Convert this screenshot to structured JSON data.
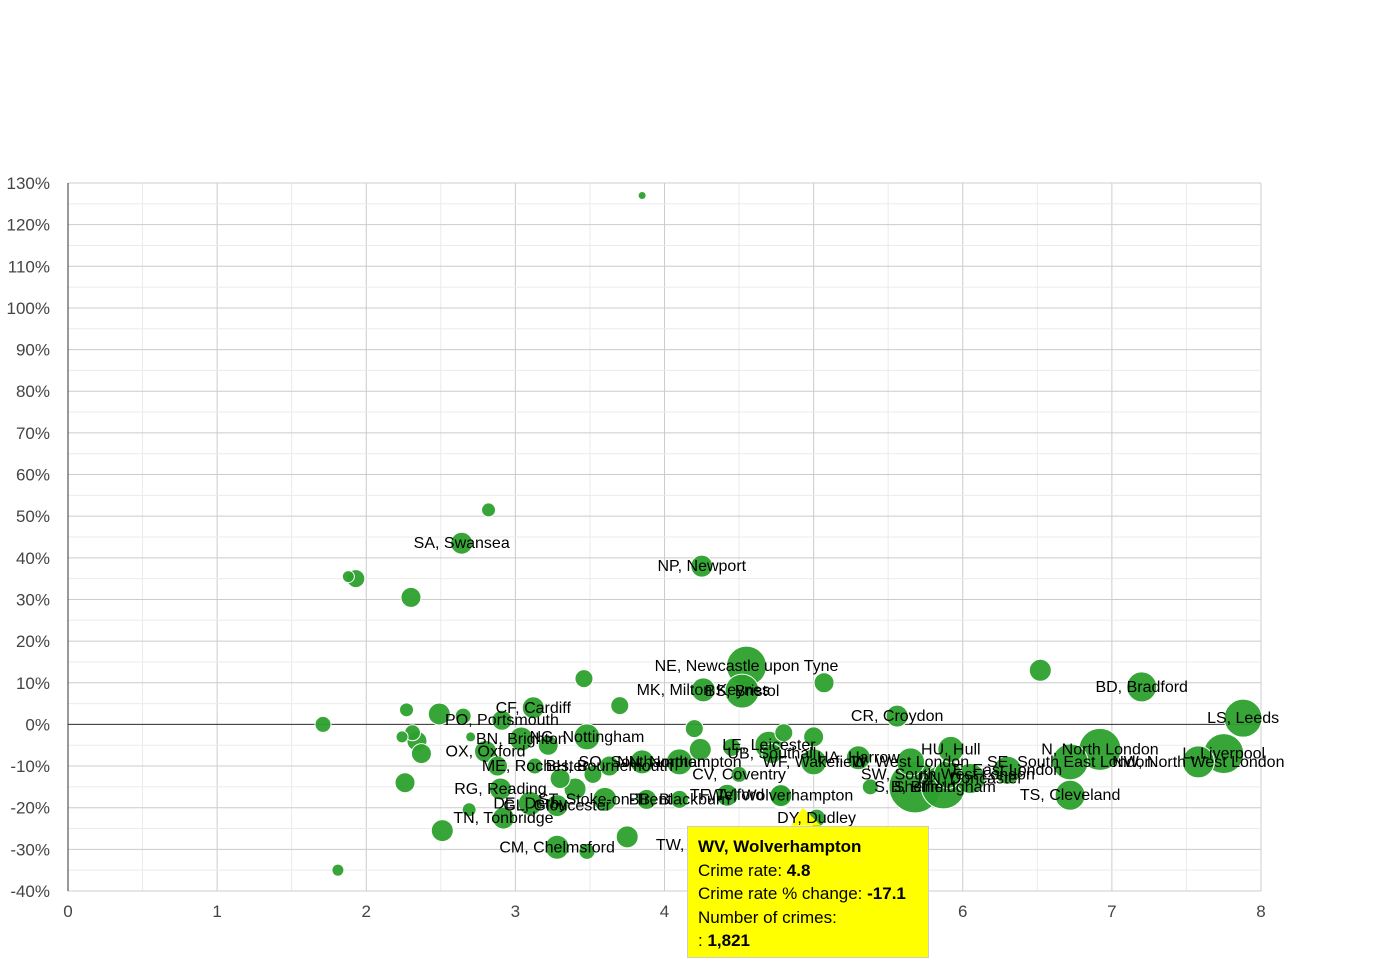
{
  "chart_data": {
    "type": "scatter",
    "title": "",
    "xlabel": "",
    "ylabel": "",
    "xlim": [
      0,
      8
    ],
    "ylim": [
      -40,
      130
    ],
    "x_ticks": [
      "0",
      "1",
      "2",
      "3",
      "4",
      "5",
      "6",
      "7",
      "8"
    ],
    "y_ticks": [
      "-40%",
      "-30%",
      "-20%",
      "-10%",
      "0%",
      "10%",
      "20%",
      "30%",
      "40%",
      "50%",
      "60%",
      "70%",
      "80%",
      "90%",
      "100%",
      "110%",
      "120%",
      "130%"
    ],
    "grid": true,
    "colors": {
      "bubble": "#2ca02c",
      "bubble_stroke": "#1a7a1a",
      "tooltip_bg": "#ffff00",
      "highlight": "#2ca02c"
    },
    "points": [
      {
        "x": 3.85,
        "y": 127,
        "size": 4,
        "label": ""
      },
      {
        "x": 2.82,
        "y": 51.5,
        "size": 7,
        "label": ""
      },
      {
        "x": 2.64,
        "y": 43.5,
        "size": 11,
        "label": "SA, Swansea"
      },
      {
        "x": 1.88,
        "y": 35.5,
        "size": 6,
        "label": ""
      },
      {
        "x": 1.93,
        "y": 35,
        "size": 9,
        "label": ""
      },
      {
        "x": 2.3,
        "y": 30.5,
        "size": 10,
        "label": ""
      },
      {
        "x": 4.25,
        "y": 38,
        "size": 11,
        "label": "NP, Newport"
      },
      {
        "x": 4.55,
        "y": 14,
        "size": 20,
        "label": "NE, Newcastle upon Tyne"
      },
      {
        "x": 4.52,
        "y": 8,
        "size": 17,
        "label": "BS, Bristol"
      },
      {
        "x": 4.26,
        "y": 8.3,
        "size": 12,
        "label": "MK, Milton Keynes"
      },
      {
        "x": 3.46,
        "y": 11,
        "size": 9,
        "label": ""
      },
      {
        "x": 5.07,
        "y": 10,
        "size": 10,
        "label": ""
      },
      {
        "x": 6.52,
        "y": 13,
        "size": 11,
        "label": ""
      },
      {
        "x": 7.2,
        "y": 9,
        "size": 15,
        "label": "BD, Bradford"
      },
      {
        "x": 7.88,
        "y": 1.5,
        "size": 19,
        "label": "LS, Leeds"
      },
      {
        "x": 1.71,
        "y": 0,
        "size": 8,
        "label": ""
      },
      {
        "x": 2.27,
        "y": 3.5,
        "size": 7,
        "label": ""
      },
      {
        "x": 2.49,
        "y": 2.5,
        "size": 11,
        "label": ""
      },
      {
        "x": 2.65,
        "y": 2,
        "size": 8,
        "label": ""
      },
      {
        "x": 2.91,
        "y": 1,
        "size": 10,
        "label": "PO, Portsmouth"
      },
      {
        "x": 3.12,
        "y": 4,
        "size": 11,
        "label": "CF, Cardiff"
      },
      {
        "x": 3.7,
        "y": 4.5,
        "size": 9,
        "label": ""
      },
      {
        "x": 4.2,
        "y": -1,
        "size": 9,
        "label": ""
      },
      {
        "x": 5.56,
        "y": 2,
        "size": 11,
        "label": "CR, Croydon"
      },
      {
        "x": 2.24,
        "y": -3,
        "size": 6,
        "label": ""
      },
      {
        "x": 2.31,
        "y": -2,
        "size": 8,
        "label": ""
      },
      {
        "x": 2.34,
        "y": -4,
        "size": 10,
        "label": ""
      },
      {
        "x": 2.37,
        "y": -7,
        "size": 10,
        "label": ""
      },
      {
        "x": 2.26,
        "y": -14,
        "size": 10,
        "label": ""
      },
      {
        "x": 2.7,
        "y": -3,
        "size": 5,
        "label": ""
      },
      {
        "x": 2.8,
        "y": -6.5,
        "size": 11,
        "label": "OX, Oxford"
      },
      {
        "x": 3.04,
        "y": -3.5,
        "size": 12,
        "label": "BN, Brighton"
      },
      {
        "x": 3.22,
        "y": -5,
        "size": 10,
        "label": ""
      },
      {
        "x": 3.48,
        "y": -3,
        "size": 13,
        "label": "NG, Nottingham"
      },
      {
        "x": 2.88,
        "y": -10,
        "size": 10,
        "label": ""
      },
      {
        "x": 2.9,
        "y": -15.5,
        "size": 11,
        "label": "RG, Reading"
      },
      {
        "x": 3.13,
        "y": -10,
        "size": 8,
        "label": "ME, Rochester"
      },
      {
        "x": 3.3,
        "y": -13,
        "size": 10,
        "label": ""
      },
      {
        "x": 3.4,
        "y": -15.5,
        "size": 11,
        "label": ""
      },
      {
        "x": 3.52,
        "y": -12,
        "size": 9,
        "label": ""
      },
      {
        "x": 3.63,
        "y": -10,
        "size": 10,
        "label": "BH, Bournemouth"
      },
      {
        "x": 3.85,
        "y": -9,
        "size": 12,
        "label": "SO, Southampton"
      },
      {
        "x": 4.1,
        "y": -9,
        "size": 13,
        "label": "NN, Northampton"
      },
      {
        "x": 4.24,
        "y": -6,
        "size": 11,
        "label": ""
      },
      {
        "x": 4.45,
        "y": -5.5,
        "size": 9,
        "label": ""
      },
      {
        "x": 4.7,
        "y": -5,
        "size": 14,
        "label": "LE, Leicester"
      },
      {
        "x": 4.8,
        "y": -2,
        "size": 9,
        "label": ""
      },
      {
        "x": 5.0,
        "y": -3,
        "size": 10,
        "label": ""
      },
      {
        "x": 4.5,
        "y": -12,
        "size": 8,
        "label": "CV, Coventry"
      },
      {
        "x": 4.72,
        "y": -7,
        "size": 10,
        "label": "UB, Southall"
      },
      {
        "x": 5.0,
        "y": -9,
        "size": 13,
        "label": "WF, Wakefield"
      },
      {
        "x": 5.3,
        "y": -8,
        "size": 12,
        "label": "HA, Harrow"
      },
      {
        "x": 5.38,
        "y": -15,
        "size": 8,
        "label": ""
      },
      {
        "x": 5.65,
        "y": -9,
        "size": 14,
        "label": "W, West London"
      },
      {
        "x": 5.68,
        "y": -15,
        "size": 26,
        "label": "S, Sheffield"
      },
      {
        "x": 5.87,
        "y": -15,
        "size": 22,
        "label": "B, Birmingham"
      },
      {
        "x": 5.9,
        "y": -12,
        "size": 14,
        "label": "SW, South West London"
      },
      {
        "x": 5.92,
        "y": -6,
        "size": 13,
        "label": "HU, Hull"
      },
      {
        "x": 6.05,
        "y": -13,
        "size": 15,
        "label": "DN, Doncaster"
      },
      {
        "x": 6.3,
        "y": -11,
        "size": 14,
        "label": "E, East London"
      },
      {
        "x": 6.72,
        "y": -9,
        "size": 18,
        "label": "SE, South East London"
      },
      {
        "x": 6.92,
        "y": -6,
        "size": 21,
        "label": "N, North London"
      },
      {
        "x": 7.58,
        "y": -9,
        "size": 16,
        "label": "NW, North West London"
      },
      {
        "x": 7.75,
        "y": -7,
        "size": 20,
        "label": "L, Liverpool"
      },
      {
        "x": 6.72,
        "y": -17,
        "size": 15,
        "label": "TS, Cleveland"
      },
      {
        "x": 2.69,
        "y": -20.5,
        "size": 7,
        "label": ""
      },
      {
        "x": 2.92,
        "y": -22.5,
        "size": 11,
        "label": "TN, Tonbridge"
      },
      {
        "x": 3.1,
        "y": -19,
        "size": 12,
        "label": "DE, Derby"
      },
      {
        "x": 3.28,
        "y": -19.5,
        "size": 11,
        "label": "GL, Gloucester"
      },
      {
        "x": 3.6,
        "y": -18,
        "size": 12,
        "label": "ST, Stoke-on-Trent"
      },
      {
        "x": 3.88,
        "y": -18,
        "size": 10,
        "label": ""
      },
      {
        "x": 4.1,
        "y": -18,
        "size": 9,
        "label": "BB, Blackburn"
      },
      {
        "x": 4.42,
        "y": -17,
        "size": 11,
        "label": "TF, Telford"
      },
      {
        "x": 4.78,
        "y": -17.1,
        "size": 12,
        "label": "WV, Wolverhampton",
        "highlight": true
      },
      {
        "x": 5.02,
        "y": -22.5,
        "size": 9,
        "label": "DY, Dudley"
      },
      {
        "x": 2.51,
        "y": -25.5,
        "size": 11,
        "label": ""
      },
      {
        "x": 3.28,
        "y": -29.5,
        "size": 12,
        "label": "CM, Chelmsford"
      },
      {
        "x": 3.48,
        "y": -30.5,
        "size": 8,
        "label": ""
      },
      {
        "x": 3.75,
        "y": -27,
        "size": 11,
        "label": ""
      },
      {
        "x": 4.35,
        "y": -29,
        "size": 9,
        "label": "TW, Twickenham"
      },
      {
        "x": 1.81,
        "y": -35,
        "size": 6,
        "label": ""
      }
    ],
    "tooltip": {
      "title": "WV, Wolverhampton",
      "crime_rate_label": "Crime rate: ",
      "crime_rate_value": "4.8",
      "change_label": "Crime rate % change: ",
      "change_value": "-17.1",
      "count_label": "Number of crimes:",
      "count_prefix": ": ",
      "count_value": "1,821"
    }
  }
}
